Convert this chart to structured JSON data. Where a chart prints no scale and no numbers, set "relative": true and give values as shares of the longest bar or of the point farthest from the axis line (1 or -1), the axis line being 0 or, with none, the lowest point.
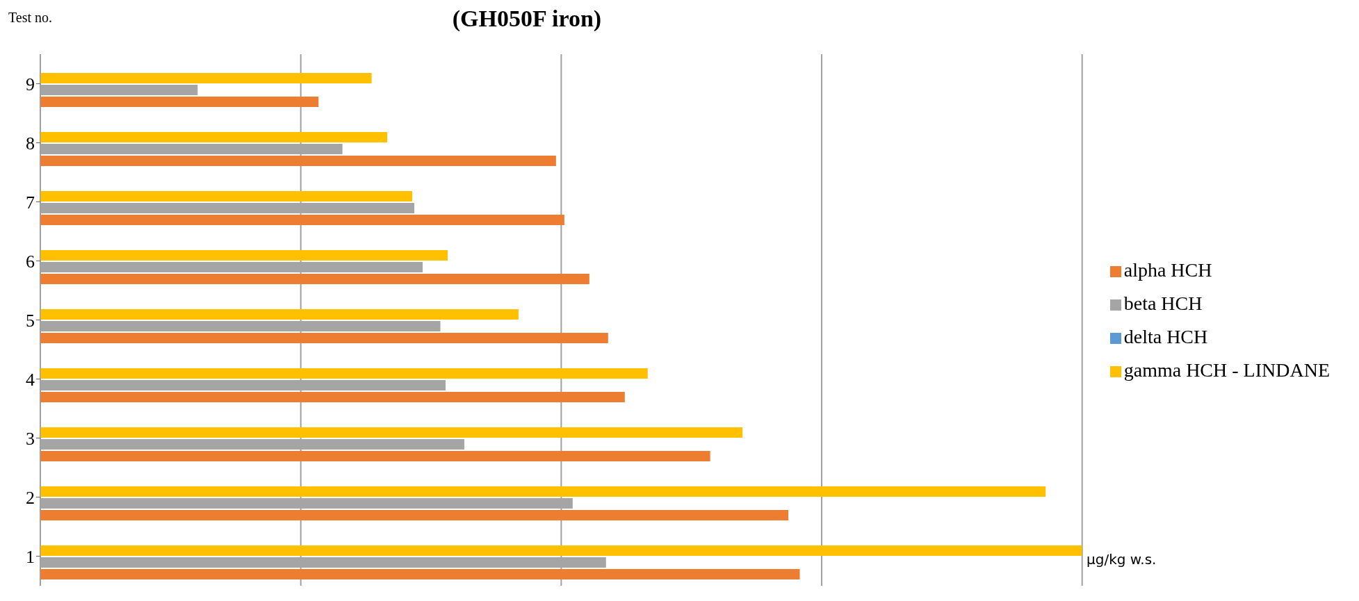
{
  "chart_data": {
    "type": "bar",
    "orientation": "horizontal",
    "relative": true,
    "title": "(GH050F iron)",
    "ylabel": "Test no.",
    "categories": [
      "9",
      "8",
      "7",
      "6",
      "5",
      "4",
      "3",
      "2",
      "1"
    ],
    "series": [
      {
        "name": "delta HCH",
        "color": "#5b9bd5",
        "values": [
          0,
          0,
          0,
          0,
          0,
          0,
          0,
          0,
          0
        ]
      },
      {
        "name": "gamma HCH - LINDANE",
        "color": "#ffc000",
        "values": [
          0.318,
          0.333,
          0.357,
          0.391,
          0.459,
          0.583,
          0.674,
          0.965,
          1
        ]
      },
      {
        "name": "beta HCH",
        "color": "#a5a5a5",
        "values": [
          0.151,
          0.29,
          0.359,
          0.367,
          0.384,
          0.389,
          0.407,
          0.511,
          0.543
        ]
      },
      {
        "name": "alpha HCH",
        "color": "#ed7d31",
        "values": [
          0.267,
          0.495,
          0.503,
          0.527,
          0.545,
          0.561,
          0.643,
          0.718,
          0.729
        ]
      }
    ],
    "grid": "x",
    "legend": "right",
    "annotations": [
      "µg/kg w.s."
    ]
  }
}
